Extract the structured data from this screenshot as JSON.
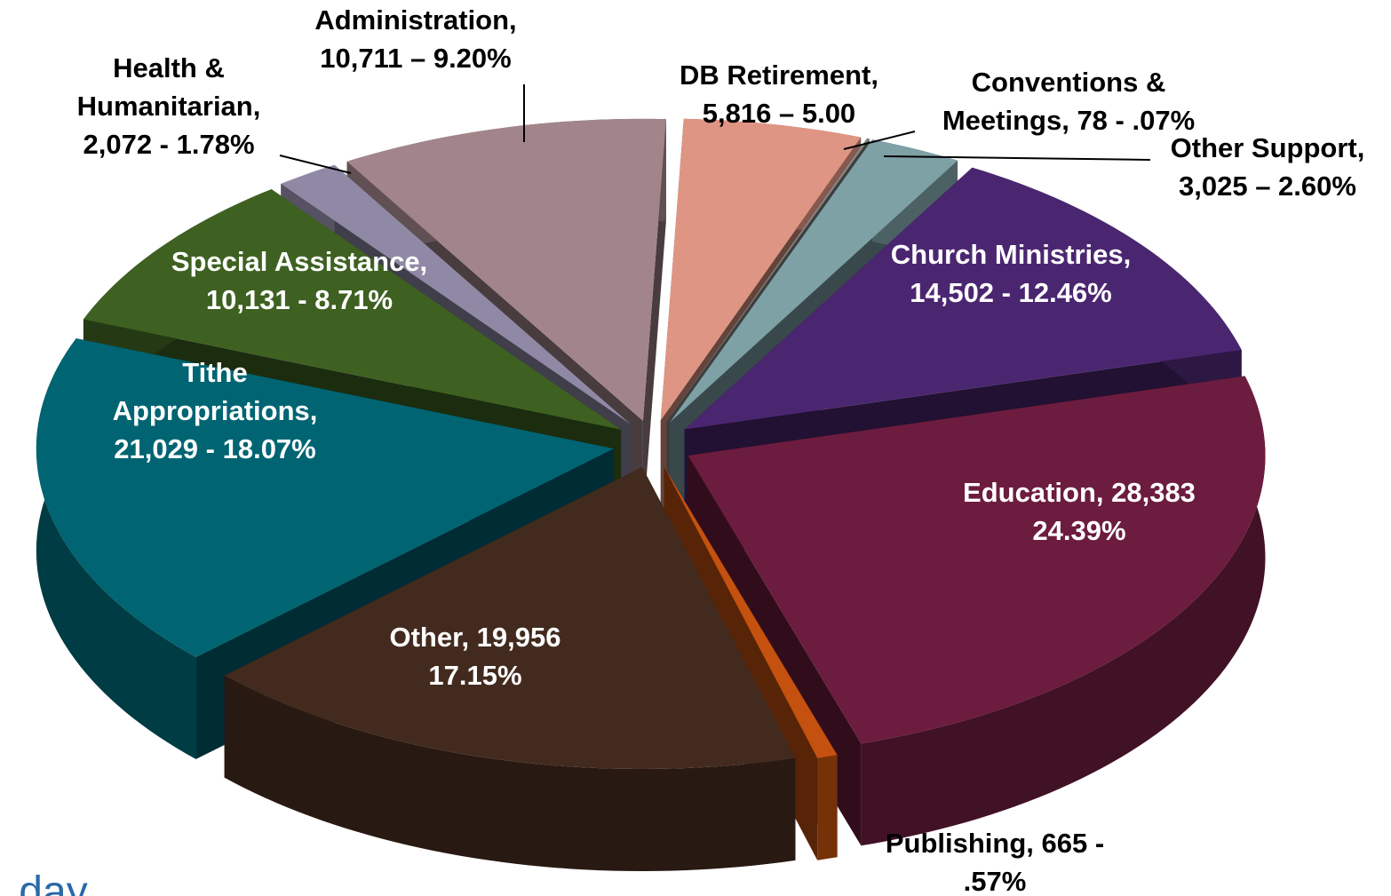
{
  "chart_data": {
    "type": "pie3d",
    "series": [
      {
        "colors": [
          "#df9583",
          "#8a8a8a",
          "#7ea1a6",
          "#4b2670",
          "#6c1c3e",
          "#c4510f",
          "#432a1e",
          "#006472",
          "#3e6121",
          "#9089a6",
          "#a2858b"
        ],
        "values": [
          5816,
          78,
          3025,
          14502,
          28383,
          665,
          19956,
          21029,
          10131,
          2072,
          10711
        ],
        "value_labels": [
          [
            "DB Retirement,",
            "5,816 – 5.00"
          ],
          [
            "Conventions &",
            "Meetings, 78 - .07%"
          ],
          [
            "Other Support,",
            "3,025 – 2.60%"
          ],
          [
            "Church Ministries,",
            "14,502 - 12.46%"
          ],
          [
            "Education,  28,383",
            "24.39%"
          ],
          [
            "Publishing, 665 -",
            ".57%"
          ],
          [
            "Other, 19,956",
            "17.15%"
          ],
          [
            "Tithe",
            "Appropriations,",
            "21,029 - 18.07%"
          ],
          [
            "Special Assistance,",
            "10,131  -  8.71%"
          ],
          [
            "Health &",
            "Humanitarian,",
            "2,072 - 1.78%"
          ],
          [
            "Administration,",
            "10,711 – 9.20%"
          ]
        ]
      }
    ],
    "logo_text": "day"
  }
}
